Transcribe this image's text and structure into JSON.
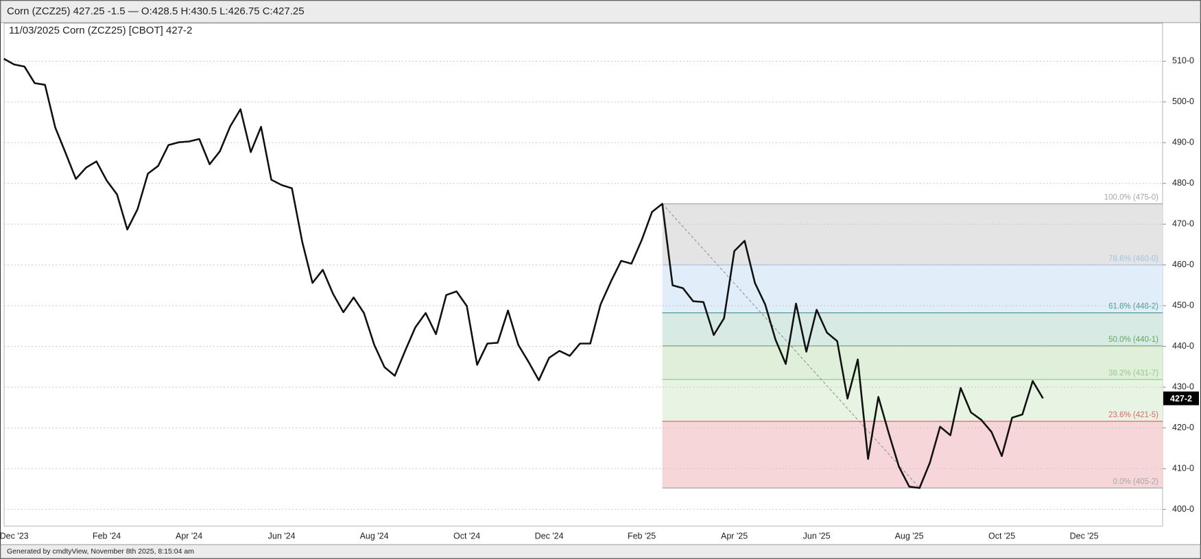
{
  "header": {
    "title": "Corn (ZCZ25) 427.25 -1.5 — O:428.5 H:430.5 L:426.75 C:427.25"
  },
  "chart_data": {
    "type": "line",
    "title": "11/03/2025 Corn (ZCZ25) [CBOT] 427-2",
    "color": "#111111",
    "categories": [
      null,
      "Dec '23",
      null,
      null,
      null,
      null,
      null,
      null,
      null,
      null,
      "Feb '24",
      null,
      null,
      null,
      null,
      null,
      null,
      null,
      "Apr '24",
      null,
      null,
      null,
      null,
      null,
      null,
      null,
      null,
      "Jun '24",
      null,
      null,
      null,
      null,
      null,
      null,
      null,
      null,
      "Aug '24",
      null,
      null,
      null,
      null,
      null,
      null,
      null,
      null,
      "Oct '24",
      null,
      null,
      null,
      null,
      null,
      null,
      null,
      "Dec '24",
      null,
      null,
      null,
      null,
      null,
      null,
      null,
      null,
      "Feb '25",
      null,
      null,
      null,
      null,
      null,
      null,
      null,
      null,
      "Apr '25",
      null,
      null,
      null,
      null,
      null,
      null,
      null,
      "Jun '25",
      null,
      null,
      null,
      null,
      null,
      null,
      null,
      null,
      "Aug '25",
      null,
      null,
      null,
      null,
      null,
      null,
      null,
      null,
      "Oct '25",
      null,
      null,
      null,
      null,
      null,
      null,
      null,
      "Dec '25",
      null,
      null,
      null,
      null,
      null,
      null,
      null
    ],
    "values": [
      510.6,
      509.2,
      508.7,
      504.6,
      504.2,
      493.7,
      487.5,
      481.1,
      483.9,
      485.4,
      480.7,
      477.3,
      468.7,
      473.7,
      482.4,
      484.3,
      489.4,
      490.1,
      490.3,
      490.9,
      484.7,
      487.9,
      494,
      498.2,
      487.7,
      493.9,
      480.9,
      479.6,
      478.8,
      465.7,
      455.6,
      458.8,
      452.9,
      448.4,
      452,
      448.2,
      440.4,
      434.9,
      432.8,
      438.9,
      444.7,
      448.2,
      443,
      452.6,
      453.5,
      449.9,
      435.5,
      440.7,
      440.9,
      448.8,
      440.4,
      436.2,
      431.7,
      437.2,
      438.9,
      437.7,
      440.7,
      440.7,
      450.3,
      455.9,
      461,
      460.3,
      466.1,
      473,
      475,
      455,
      454.3,
      451.1,
      450.9,
      442.8,
      446.9,
      463.4,
      465.9,
      455.6,
      450.3,
      441.7,
      435.7,
      450.5,
      438.7,
      449,
      443.4,
      441.3,
      427.2,
      436.8,
      412.4,
      427.6,
      418.8,
      410.5,
      405.6,
      405.25,
      411.4,
      420.3,
      418.2,
      429.8,
      423.8,
      422,
      419,
      413.1,
      422.5,
      423.3,
      431.5,
      427.25,
      null,
      null,
      null,
      null,
      null,
      null,
      null,
      null,
      null,
      null,
      null
    ],
    "last_value_label": "427-2",
    "ylim": [
      395.9,
      519.3
    ],
    "yticks": [
      {
        "value": 400,
        "label": "400-0"
      },
      {
        "value": 410,
        "label": "410-0"
      },
      {
        "value": 420,
        "label": "420-0"
      },
      {
        "value": 430,
        "label": "430-0"
      },
      {
        "value": 440,
        "label": "440-0"
      },
      {
        "value": 450,
        "label": "450-0"
      },
      {
        "value": 460,
        "label": "460-0"
      },
      {
        "value": 470,
        "label": "470-0"
      },
      {
        "value": 480,
        "label": "480-0"
      },
      {
        "value": 490,
        "label": "490-0"
      },
      {
        "value": 500,
        "label": "500-0"
      },
      {
        "value": 510,
        "label": "510-0"
      }
    ],
    "grid": true,
    "fibonacci": {
      "levels": [
        {
          "label": "100.0% (475-0)",
          "value": 475,
          "color": "#a6a6a6",
          "fill": "#e4e4e5"
        },
        {
          "label": "78.6% (460-0)",
          "value": 460,
          "color": "#9fc3e6",
          "fill": "#e1edf9"
        },
        {
          "label": "61.8% (448-2)",
          "value": 448.25,
          "color": "#4f9a8e",
          "fill": "#d8eae4"
        },
        {
          "label": "50.0% (440-1)",
          "value": 440.125,
          "color": "#62a65a",
          "fill": "#dfefd9"
        },
        {
          "label": "38.2% (431-7)",
          "value": 431.875,
          "color": "#96cc8a",
          "fill": "#e7f3e3"
        },
        {
          "label": "23.6% (421-5)",
          "value": 421.625,
          "color": "#e06666",
          "fill": "#f6d6d8"
        },
        {
          "label": "0.0% (405-2)",
          "value": 405.25,
          "color": "#a6a6a6"
        }
      ]
    }
  },
  "footer": {
    "text": "Generated by cmdtyView, November 8th 2025, 8:15:04 am"
  }
}
